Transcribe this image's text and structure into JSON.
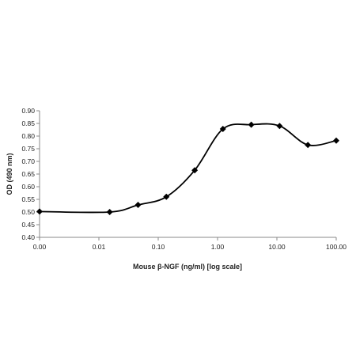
{
  "chart_data": {
    "type": "line",
    "title": "",
    "xlabel": "Mouse β-NGF (ng/ml) [log scale]",
    "ylabel": "OD (490 nm)",
    "x_scale": "log",
    "x_ticks": [
      1e-05,
      0.01,
      0.1,
      1,
      10,
      100
    ],
    "x_tick_labels": [
      "0.00",
      "0.01",
      "0.10",
      "1.00",
      "10.00",
      "100.00"
    ],
    "y_ticks": [
      0.4,
      0.45,
      0.5,
      0.55,
      0.6,
      0.65,
      0.7,
      0.75,
      0.8,
      0.85,
      0.9
    ],
    "y_tick_labels": [
      "0.40",
      "0.45",
      "0.50",
      "0.55",
      "0.60",
      "0.65",
      "0.70",
      "0.75",
      "0.80",
      "0.85",
      "0.90"
    ],
    "ylim": [
      0.4,
      0.9
    ],
    "grid": false,
    "legend": "none",
    "marker": "diamond",
    "line_color": "#000000",
    "series": [
      {
        "x": [
          1e-05,
          0.0152,
          0.0457,
          0.137,
          0.412,
          1.23,
          3.7,
          11.1,
          33.3,
          100
        ],
        "y": [
          0.502,
          0.5,
          0.528,
          0.56,
          0.665,
          0.828,
          0.845,
          0.84,
          0.765,
          0.782
        ]
      }
    ]
  }
}
